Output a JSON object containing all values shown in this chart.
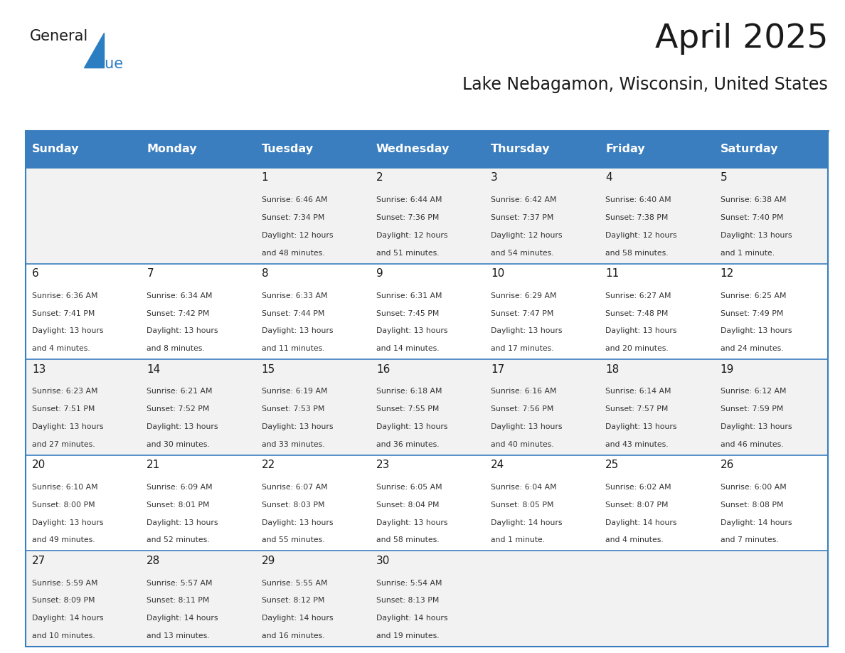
{
  "title": "April 2025",
  "subtitle": "Lake Nebagamon, Wisconsin, United States",
  "days_of_week": [
    "Sunday",
    "Monday",
    "Tuesday",
    "Wednesday",
    "Thursday",
    "Friday",
    "Saturday"
  ],
  "header_bg": "#3a7ebf",
  "header_text": "#ffffff",
  "row_bg_odd": "#f2f2f2",
  "row_bg_even": "#ffffff",
  "cell_border": "#3a7ebf",
  "title_color": "#1a1a1a",
  "subtitle_color": "#1a1a1a",
  "day_number_color": "#1a1a1a",
  "cell_text_color": "#333333",
  "logo_general_color": "#1a1a1a",
  "logo_blue_color": "#2b7ec1",
  "calendar": [
    [
      {
        "day": null,
        "sunrise": null,
        "sunset": null,
        "daylight": null
      },
      {
        "day": null,
        "sunrise": null,
        "sunset": null,
        "daylight": null
      },
      {
        "day": 1,
        "sunrise": "6:46 AM",
        "sunset": "7:34 PM",
        "daylight": "12 hours\nand 48 minutes."
      },
      {
        "day": 2,
        "sunrise": "6:44 AM",
        "sunset": "7:36 PM",
        "daylight": "12 hours\nand 51 minutes."
      },
      {
        "day": 3,
        "sunrise": "6:42 AM",
        "sunset": "7:37 PM",
        "daylight": "12 hours\nand 54 minutes."
      },
      {
        "day": 4,
        "sunrise": "6:40 AM",
        "sunset": "7:38 PM",
        "daylight": "12 hours\nand 58 minutes."
      },
      {
        "day": 5,
        "sunrise": "6:38 AM",
        "sunset": "7:40 PM",
        "daylight": "13 hours\nand 1 minute."
      }
    ],
    [
      {
        "day": 6,
        "sunrise": "6:36 AM",
        "sunset": "7:41 PM",
        "daylight": "13 hours\nand 4 minutes."
      },
      {
        "day": 7,
        "sunrise": "6:34 AM",
        "sunset": "7:42 PM",
        "daylight": "13 hours\nand 8 minutes."
      },
      {
        "day": 8,
        "sunrise": "6:33 AM",
        "sunset": "7:44 PM",
        "daylight": "13 hours\nand 11 minutes."
      },
      {
        "day": 9,
        "sunrise": "6:31 AM",
        "sunset": "7:45 PM",
        "daylight": "13 hours\nand 14 minutes."
      },
      {
        "day": 10,
        "sunrise": "6:29 AM",
        "sunset": "7:47 PM",
        "daylight": "13 hours\nand 17 minutes."
      },
      {
        "day": 11,
        "sunrise": "6:27 AM",
        "sunset": "7:48 PM",
        "daylight": "13 hours\nand 20 minutes."
      },
      {
        "day": 12,
        "sunrise": "6:25 AM",
        "sunset": "7:49 PM",
        "daylight": "13 hours\nand 24 minutes."
      }
    ],
    [
      {
        "day": 13,
        "sunrise": "6:23 AM",
        "sunset": "7:51 PM",
        "daylight": "13 hours\nand 27 minutes."
      },
      {
        "day": 14,
        "sunrise": "6:21 AM",
        "sunset": "7:52 PM",
        "daylight": "13 hours\nand 30 minutes."
      },
      {
        "day": 15,
        "sunrise": "6:19 AM",
        "sunset": "7:53 PM",
        "daylight": "13 hours\nand 33 minutes."
      },
      {
        "day": 16,
        "sunrise": "6:18 AM",
        "sunset": "7:55 PM",
        "daylight": "13 hours\nand 36 minutes."
      },
      {
        "day": 17,
        "sunrise": "6:16 AM",
        "sunset": "7:56 PM",
        "daylight": "13 hours\nand 40 minutes."
      },
      {
        "day": 18,
        "sunrise": "6:14 AM",
        "sunset": "7:57 PM",
        "daylight": "13 hours\nand 43 minutes."
      },
      {
        "day": 19,
        "sunrise": "6:12 AM",
        "sunset": "7:59 PM",
        "daylight": "13 hours\nand 46 minutes."
      }
    ],
    [
      {
        "day": 20,
        "sunrise": "6:10 AM",
        "sunset": "8:00 PM",
        "daylight": "13 hours\nand 49 minutes."
      },
      {
        "day": 21,
        "sunrise": "6:09 AM",
        "sunset": "8:01 PM",
        "daylight": "13 hours\nand 52 minutes."
      },
      {
        "day": 22,
        "sunrise": "6:07 AM",
        "sunset": "8:03 PM",
        "daylight": "13 hours\nand 55 minutes."
      },
      {
        "day": 23,
        "sunrise": "6:05 AM",
        "sunset": "8:04 PM",
        "daylight": "13 hours\nand 58 minutes."
      },
      {
        "day": 24,
        "sunrise": "6:04 AM",
        "sunset": "8:05 PM",
        "daylight": "14 hours\nand 1 minute."
      },
      {
        "day": 25,
        "sunrise": "6:02 AM",
        "sunset": "8:07 PM",
        "daylight": "14 hours\nand 4 minutes."
      },
      {
        "day": 26,
        "sunrise": "6:00 AM",
        "sunset": "8:08 PM",
        "daylight": "14 hours\nand 7 minutes."
      }
    ],
    [
      {
        "day": 27,
        "sunrise": "5:59 AM",
        "sunset": "8:09 PM",
        "daylight": "14 hours\nand 10 minutes."
      },
      {
        "day": 28,
        "sunrise": "5:57 AM",
        "sunset": "8:11 PM",
        "daylight": "14 hours\nand 13 minutes."
      },
      {
        "day": 29,
        "sunrise": "5:55 AM",
        "sunset": "8:12 PM",
        "daylight": "14 hours\nand 16 minutes."
      },
      {
        "day": 30,
        "sunrise": "5:54 AM",
        "sunset": "8:13 PM",
        "daylight": "14 hours\nand 19 minutes."
      },
      {
        "day": null,
        "sunrise": null,
        "sunset": null,
        "daylight": null
      },
      {
        "day": null,
        "sunrise": null,
        "sunset": null,
        "daylight": null
      },
      {
        "day": null,
        "sunrise": null,
        "sunset": null,
        "daylight": null
      }
    ]
  ]
}
